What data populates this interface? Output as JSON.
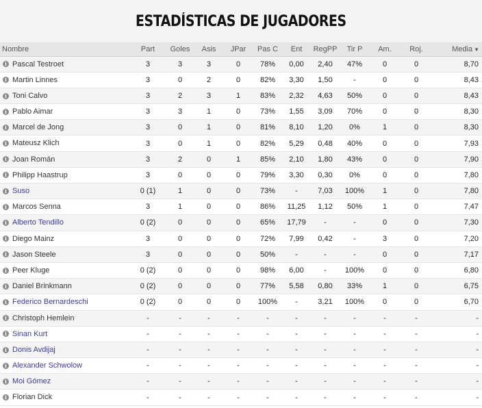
{
  "title": "ESTADÍSTICAS DE JUGADORES",
  "columns": [
    "Nombre",
    "Part",
    "Goles",
    "Asis",
    "JPar",
    "Pas C",
    "Ent",
    "RegPP",
    "Tir P",
    "Am.",
    "Roj.",
    "Media"
  ],
  "sort_indicator": "▼",
  "link_color": "#3a3aa8",
  "players": [
    {
      "name": "Pascal Testroet",
      "link": false,
      "part": "3",
      "goles": "3",
      "asis": "3",
      "jpar": "0",
      "pasc": "78%",
      "ent": "0,00",
      "regpp": "2,40",
      "tirp": "47%",
      "am": "0",
      "roj": "0",
      "media": "8,70"
    },
    {
      "name": "Martin Linnes",
      "link": false,
      "part": "3",
      "goles": "0",
      "asis": "2",
      "jpar": "0",
      "pasc": "82%",
      "ent": "3,30",
      "regpp": "1,50",
      "tirp": "-",
      "am": "0",
      "roj": "0",
      "media": "8,43"
    },
    {
      "name": "Toni Calvo",
      "link": false,
      "part": "3",
      "goles": "2",
      "asis": "3",
      "jpar": "1",
      "pasc": "83%",
      "ent": "2,32",
      "regpp": "4,63",
      "tirp": "50%",
      "am": "0",
      "roj": "0",
      "media": "8,43"
    },
    {
      "name": "Pablo Aimar",
      "link": false,
      "part": "3",
      "goles": "3",
      "asis": "1",
      "jpar": "0",
      "pasc": "73%",
      "ent": "1,55",
      "regpp": "3,09",
      "tirp": "70%",
      "am": "0",
      "roj": "0",
      "media": "8,30"
    },
    {
      "name": "Marcel de Jong",
      "link": false,
      "part": "3",
      "goles": "0",
      "asis": "1",
      "jpar": "0",
      "pasc": "81%",
      "ent": "8,10",
      "regpp": "1,20",
      "tirp": "0%",
      "am": "1",
      "roj": "0",
      "media": "8,30"
    },
    {
      "name": "Mateusz Klich",
      "link": false,
      "part": "3",
      "goles": "0",
      "asis": "1",
      "jpar": "0",
      "pasc": "82%",
      "ent": "5,29",
      "regpp": "0,48",
      "tirp": "40%",
      "am": "0",
      "roj": "0",
      "media": "7,93"
    },
    {
      "name": "Joan Román",
      "link": false,
      "part": "3",
      "goles": "2",
      "asis": "0",
      "jpar": "1",
      "pasc": "85%",
      "ent": "2,10",
      "regpp": "1,80",
      "tirp": "43%",
      "am": "0",
      "roj": "0",
      "media": "7,90"
    },
    {
      "name": "Philipp Haastrup",
      "link": false,
      "part": "3",
      "goles": "0",
      "asis": "0",
      "jpar": "0",
      "pasc": "79%",
      "ent": "3,30",
      "regpp": "0,30",
      "tirp": "0%",
      "am": "0",
      "roj": "0",
      "media": "7,80"
    },
    {
      "name": "Suso",
      "link": true,
      "part": "0 (1)",
      "goles": "1",
      "asis": "0",
      "jpar": "0",
      "pasc": "73%",
      "ent": "-",
      "regpp": "7,03",
      "tirp": "100%",
      "am": "1",
      "roj": "0",
      "media": "7,80"
    },
    {
      "name": "Marcos Senna",
      "link": false,
      "part": "3",
      "goles": "1",
      "asis": "0",
      "jpar": "0",
      "pasc": "86%",
      "ent": "11,25",
      "regpp": "1,12",
      "tirp": "50%",
      "am": "1",
      "roj": "0",
      "media": "7,47"
    },
    {
      "name": "Alberto Tendillo",
      "link": true,
      "part": "0 (2)",
      "goles": "0",
      "asis": "0",
      "jpar": "0",
      "pasc": "65%",
      "ent": "17,79",
      "regpp": "-",
      "tirp": "-",
      "am": "0",
      "roj": "0",
      "media": "7,30"
    },
    {
      "name": "Diego Mainz",
      "link": false,
      "part": "3",
      "goles": "0",
      "asis": "0",
      "jpar": "0",
      "pasc": "72%",
      "ent": "7,99",
      "regpp": "0,42",
      "tirp": "-",
      "am": "3",
      "roj": "0",
      "media": "7,20"
    },
    {
      "name": "Jason Steele",
      "link": false,
      "part": "3",
      "goles": "0",
      "asis": "0",
      "jpar": "0",
      "pasc": "50%",
      "ent": "-",
      "regpp": "-",
      "tirp": "-",
      "am": "0",
      "roj": "0",
      "media": "7,17"
    },
    {
      "name": "Peer Kluge",
      "link": false,
      "part": "0 (2)",
      "goles": "0",
      "asis": "0",
      "jpar": "0",
      "pasc": "98%",
      "ent": "6,00",
      "regpp": "-",
      "tirp": "100%",
      "am": "0",
      "roj": "0",
      "media": "6,80"
    },
    {
      "name": "Daniel Brinkmann",
      "link": false,
      "part": "0 (2)",
      "goles": "0",
      "asis": "0",
      "jpar": "0",
      "pasc": "77%",
      "ent": "5,58",
      "regpp": "0,80",
      "tirp": "33%",
      "am": "1",
      "roj": "0",
      "media": "6,75"
    },
    {
      "name": "Federico Bernardeschi",
      "link": true,
      "part": "0 (2)",
      "goles": "0",
      "asis": "0",
      "jpar": "0",
      "pasc": "100%",
      "ent": "-",
      "regpp": "3,21",
      "tirp": "100%",
      "am": "0",
      "roj": "0",
      "media": "6,70"
    },
    {
      "name": "Christoph Hemlein",
      "link": false,
      "part": "-",
      "goles": "-",
      "asis": "-",
      "jpar": "-",
      "pasc": "-",
      "ent": "-",
      "regpp": "-",
      "tirp": "-",
      "am": "-",
      "roj": "-",
      "media": "-"
    },
    {
      "name": "Sinan Kurt",
      "link": true,
      "part": "-",
      "goles": "-",
      "asis": "-",
      "jpar": "-",
      "pasc": "-",
      "ent": "-",
      "regpp": "-",
      "tirp": "-",
      "am": "-",
      "roj": "-",
      "media": "-"
    },
    {
      "name": "Donis Avdijaj",
      "link": true,
      "part": "-",
      "goles": "-",
      "asis": "-",
      "jpar": "-",
      "pasc": "-",
      "ent": "-",
      "regpp": "-",
      "tirp": "-",
      "am": "-",
      "roj": "-",
      "media": "-"
    },
    {
      "name": "Alexander Schwolow",
      "link": true,
      "part": "-",
      "goles": "-",
      "asis": "-",
      "jpar": "-",
      "pasc": "-",
      "ent": "-",
      "regpp": "-",
      "tirp": "-",
      "am": "-",
      "roj": "-",
      "media": "-"
    },
    {
      "name": "Moi Gómez",
      "link": true,
      "part": "-",
      "goles": "-",
      "asis": "-",
      "jpar": "-",
      "pasc": "-",
      "ent": "-",
      "regpp": "-",
      "tirp": "-",
      "am": "-",
      "roj": "-",
      "media": "-"
    },
    {
      "name": "Florian Dick",
      "link": false,
      "part": "-",
      "goles": "-",
      "asis": "-",
      "jpar": "-",
      "pasc": "-",
      "ent": "-",
      "regpp": "-",
      "tirp": "-",
      "am": "-",
      "roj": "-",
      "media": "-"
    }
  ]
}
